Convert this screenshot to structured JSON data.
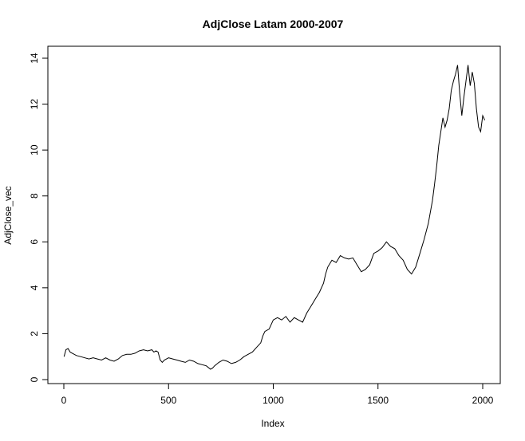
{
  "chart_data": {
    "type": "line",
    "title": "AdjClose Latam 2000-2007",
    "xlabel": "Index",
    "ylabel": "AdjClose_vec",
    "xlim": [
      0,
      2020
    ],
    "ylim": [
      0,
      14.2
    ],
    "xticks": [
      0,
      500,
      1000,
      1500,
      2000
    ],
    "yticks": [
      0,
      2,
      4,
      6,
      8,
      10,
      12,
      14
    ],
    "grid": false,
    "legend": "none",
    "line_color": "#000000",
    "series": [
      {
        "x": [
          1,
          10,
          20,
          30,
          40,
          60,
          80,
          100,
          120,
          140,
          160,
          180,
          200,
          220,
          240,
          260,
          280,
          300,
          320,
          340,
          360,
          380,
          400,
          420,
          430,
          440,
          450,
          460,
          470,
          480,
          500,
          520,
          540,
          560,
          580,
          600,
          620,
          640,
          660,
          680,
          700,
          710,
          720,
          740,
          760,
          780,
          800,
          820,
          840,
          860,
          880,
          900,
          920,
          940,
          950,
          960,
          980,
          1000,
          1020,
          1040,
          1060,
          1080,
          1100,
          1120,
          1140,
          1160,
          1180,
          1200,
          1220,
          1240,
          1250,
          1260,
          1280,
          1300,
          1320,
          1340,
          1360,
          1380,
          1400,
          1420,
          1440,
          1460,
          1480,
          1500,
          1520,
          1540,
          1560,
          1580,
          1600,
          1620,
          1640,
          1660,
          1680,
          1700,
          1720,
          1740,
          1760,
          1770,
          1780,
          1790,
          1800,
          1810,
          1820,
          1830,
          1840,
          1850,
          1860,
          1870,
          1880,
          1890,
          1900,
          1910,
          1920,
          1930,
          1940,
          1950,
          1960,
          1970,
          1980,
          1990,
          2000,
          2010
        ],
        "values": [
          1.0,
          1.3,
          1.35,
          1.2,
          1.15,
          1.05,
          1.0,
          0.95,
          0.9,
          0.95,
          0.9,
          0.85,
          0.95,
          0.85,
          0.8,
          0.9,
          1.05,
          1.1,
          1.1,
          1.15,
          1.25,
          1.3,
          1.25,
          1.3,
          1.2,
          1.25,
          1.2,
          0.85,
          0.75,
          0.85,
          0.95,
          0.9,
          0.85,
          0.8,
          0.75,
          0.85,
          0.8,
          0.7,
          0.65,
          0.6,
          0.45,
          0.5,
          0.6,
          0.75,
          0.85,
          0.8,
          0.7,
          0.75,
          0.85,
          1.0,
          1.1,
          1.2,
          1.4,
          1.6,
          1.9,
          2.1,
          2.2,
          2.6,
          2.7,
          2.6,
          2.75,
          2.5,
          2.7,
          2.6,
          2.5,
          2.9,
          3.2,
          3.5,
          3.8,
          4.2,
          4.6,
          4.9,
          5.2,
          5.1,
          5.4,
          5.3,
          5.25,
          5.3,
          5.0,
          4.7,
          4.8,
          5.0,
          5.5,
          5.6,
          5.75,
          6.0,
          5.8,
          5.7,
          5.4,
          5.2,
          4.8,
          4.6,
          4.9,
          5.5,
          6.1,
          6.8,
          7.8,
          8.5,
          9.3,
          10.2,
          10.8,
          11.4,
          11.0,
          11.3,
          11.8,
          12.6,
          13.0,
          13.3,
          13.7,
          12.5,
          11.5,
          12.3,
          13.0,
          13.7,
          12.8,
          13.4,
          12.9,
          11.8,
          11.0,
          10.8,
          11.5,
          11.3
        ]
      }
    ]
  }
}
